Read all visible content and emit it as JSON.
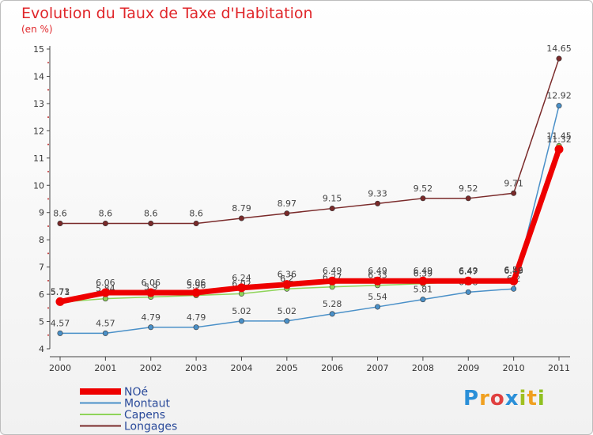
{
  "chart_data": {
    "type": "line",
    "title": "Evolution du Taux de Taxe d'Habitation",
    "subtitle": "(en %)",
    "xlabel": "",
    "ylabel": "",
    "x": [
      "2000",
      "2001",
      "2002",
      "2003",
      "2004",
      "2005",
      "2006",
      "2007",
      "2008",
      "2009",
      "2010",
      "2011"
    ],
    "ylim": [
      4,
      15
    ],
    "yticks": [
      "4",
      "5",
      "6",
      "7",
      "8",
      "9",
      "10",
      "11",
      "12",
      "13",
      "14",
      "15"
    ],
    "grid": false,
    "legend_position": "bottom-left",
    "series": [
      {
        "name": "NOé",
        "color": "#ee0000",
        "values": [
          5.73,
          6.06,
          6.06,
          6.06,
          6.24,
          6.36,
          6.49,
          6.49,
          6.49,
          6.49,
          6.49,
          11.32
        ],
        "labels": [
          "5.73",
          "6.06",
          "6.06",
          "6.06",
          "6.24",
          "6.36",
          "6.49",
          "6.49",
          "6.49",
          "6.49",
          "6.49",
          "11.32"
        ]
      },
      {
        "name": "Montaut",
        "color": "#4a90c8",
        "values": [
          4.57,
          4.57,
          4.79,
          4.79,
          5.02,
          5.02,
          5.28,
          5.54,
          5.81,
          6.08,
          6.2,
          12.92
        ],
        "labels": [
          "4.57",
          "4.57",
          "4.79",
          "4.79",
          "5.02",
          "5.02",
          "5.28",
          "5.54",
          "5.81",
          "6.08",
          "6.2",
          "12.92"
        ]
      },
      {
        "name": "Capens",
        "color": "#8fd45a",
        "values": [
          5.71,
          5.84,
          5.9,
          5.96,
          6.02,
          6.2,
          6.27,
          6.33,
          6.39,
          6.47,
          6.52,
          11.45
        ],
        "labels": [
          "5.71",
          "5.84",
          "5.9",
          "5.96",
          "6.02",
          "6.2",
          "6.27",
          "6.33",
          "6.39",
          "6.47",
          "6.52",
          "11.45"
        ]
      },
      {
        "name": "Longages",
        "color": "#7a2a2a",
        "values": [
          8.6,
          8.6,
          8.6,
          8.6,
          8.79,
          8.97,
          9.15,
          9.33,
          9.52,
          9.52,
          9.71,
          14.65
        ],
        "labels": [
          "8.6",
          "8.6",
          "8.6",
          "8.6",
          "8.79",
          "8.97",
          "9.15",
          "9.33",
          "9.52",
          "9.52",
          "9.71",
          "14.65"
        ]
      }
    ]
  },
  "logo": {
    "text": "Proxiti",
    "letters": [
      "P",
      "r",
      "o",
      "x",
      "i",
      "t",
      "i"
    ],
    "colors": [
      "#2a8fd8",
      "#f0a020",
      "#e04040",
      "#2a8fd8",
      "#a0c020",
      "#f0a020",
      "#8fc020"
    ]
  }
}
